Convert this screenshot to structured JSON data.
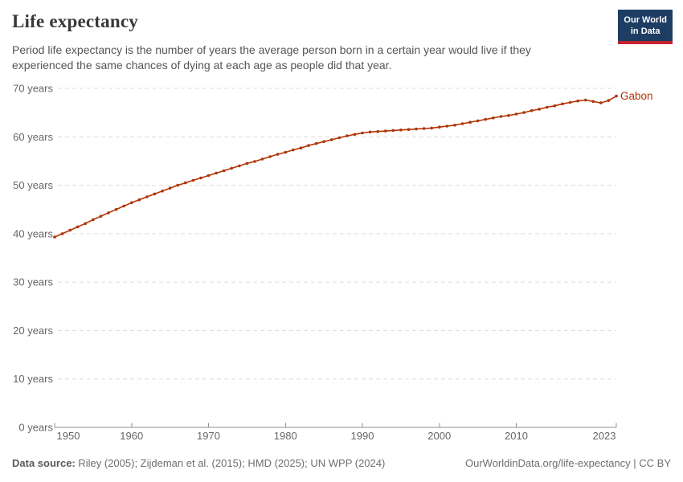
{
  "header": {
    "title": "Life expectancy",
    "subtitle": "Period life expectancy is the number of years the average person born in a certain year would live if they experienced the same chances of dying at each age as people did that year.",
    "logo": {
      "line1": "Our World",
      "line2": "in Data"
    }
  },
  "chart_data": {
    "type": "line",
    "title": "Life expectancy",
    "entity": "Gabon",
    "xlim": [
      1950,
      2023
    ],
    "ylim": [
      0,
      70
    ],
    "x_ticks": [
      1950,
      1960,
      1970,
      1980,
      1990,
      2000,
      2010,
      2023
    ],
    "y_ticks": [
      0,
      10,
      20,
      30,
      40,
      50,
      60,
      70
    ],
    "y_tick_suffix": " years",
    "grid": "horizontal-dashed",
    "legend_position": "end-of-line-label",
    "series": [
      {
        "name": "Gabon",
        "color": "#B13507",
        "years": [
          1950,
          1951,
          1952,
          1953,
          1954,
          1955,
          1956,
          1957,
          1958,
          1959,
          1960,
          1961,
          1962,
          1963,
          1964,
          1965,
          1966,
          1967,
          1968,
          1969,
          1970,
          1971,
          1972,
          1973,
          1974,
          1975,
          1976,
          1977,
          1978,
          1979,
          1980,
          1981,
          1982,
          1983,
          1984,
          1985,
          1986,
          1987,
          1988,
          1989,
          1990,
          1991,
          1992,
          1993,
          1994,
          1995,
          1996,
          1997,
          1998,
          1999,
          2000,
          2001,
          2002,
          2003,
          2004,
          2005,
          2006,
          2007,
          2008,
          2009,
          2010,
          2011,
          2012,
          2013,
          2014,
          2015,
          2016,
          2017,
          2018,
          2019,
          2020,
          2021,
          2022,
          2023
        ],
        "values": [
          39.3,
          40.0,
          40.7,
          41.4,
          42.1,
          42.9,
          43.6,
          44.3,
          45.0,
          45.7,
          46.4,
          47.0,
          47.6,
          48.2,
          48.8,
          49.4,
          50.0,
          50.5,
          51.0,
          51.5,
          52.0,
          52.5,
          53.0,
          53.5,
          54.0,
          54.5,
          54.9,
          55.4,
          55.9,
          56.4,
          56.8,
          57.3,
          57.7,
          58.2,
          58.6,
          59.0,
          59.4,
          59.8,
          60.2,
          60.5,
          60.8,
          61.0,
          61.1,
          61.2,
          61.3,
          61.4,
          61.5,
          61.6,
          61.7,
          61.8,
          62.0,
          62.2,
          62.4,
          62.7,
          63.0,
          63.3,
          63.6,
          63.9,
          64.2,
          64.4,
          64.7,
          65.0,
          65.4,
          65.7,
          66.1,
          66.4,
          66.8,
          67.1,
          67.4,
          67.6,
          67.3,
          67.0,
          67.5,
          68.4
        ]
      }
    ]
  },
  "footer": {
    "datasource_label": "Data source:",
    "datasource_text": " Riley (2005); Zijdeman et al. (2015); HMD (2025); UN WPP (2024)",
    "link": "OurWorldinData.org/life-expectancy | CC BY"
  }
}
